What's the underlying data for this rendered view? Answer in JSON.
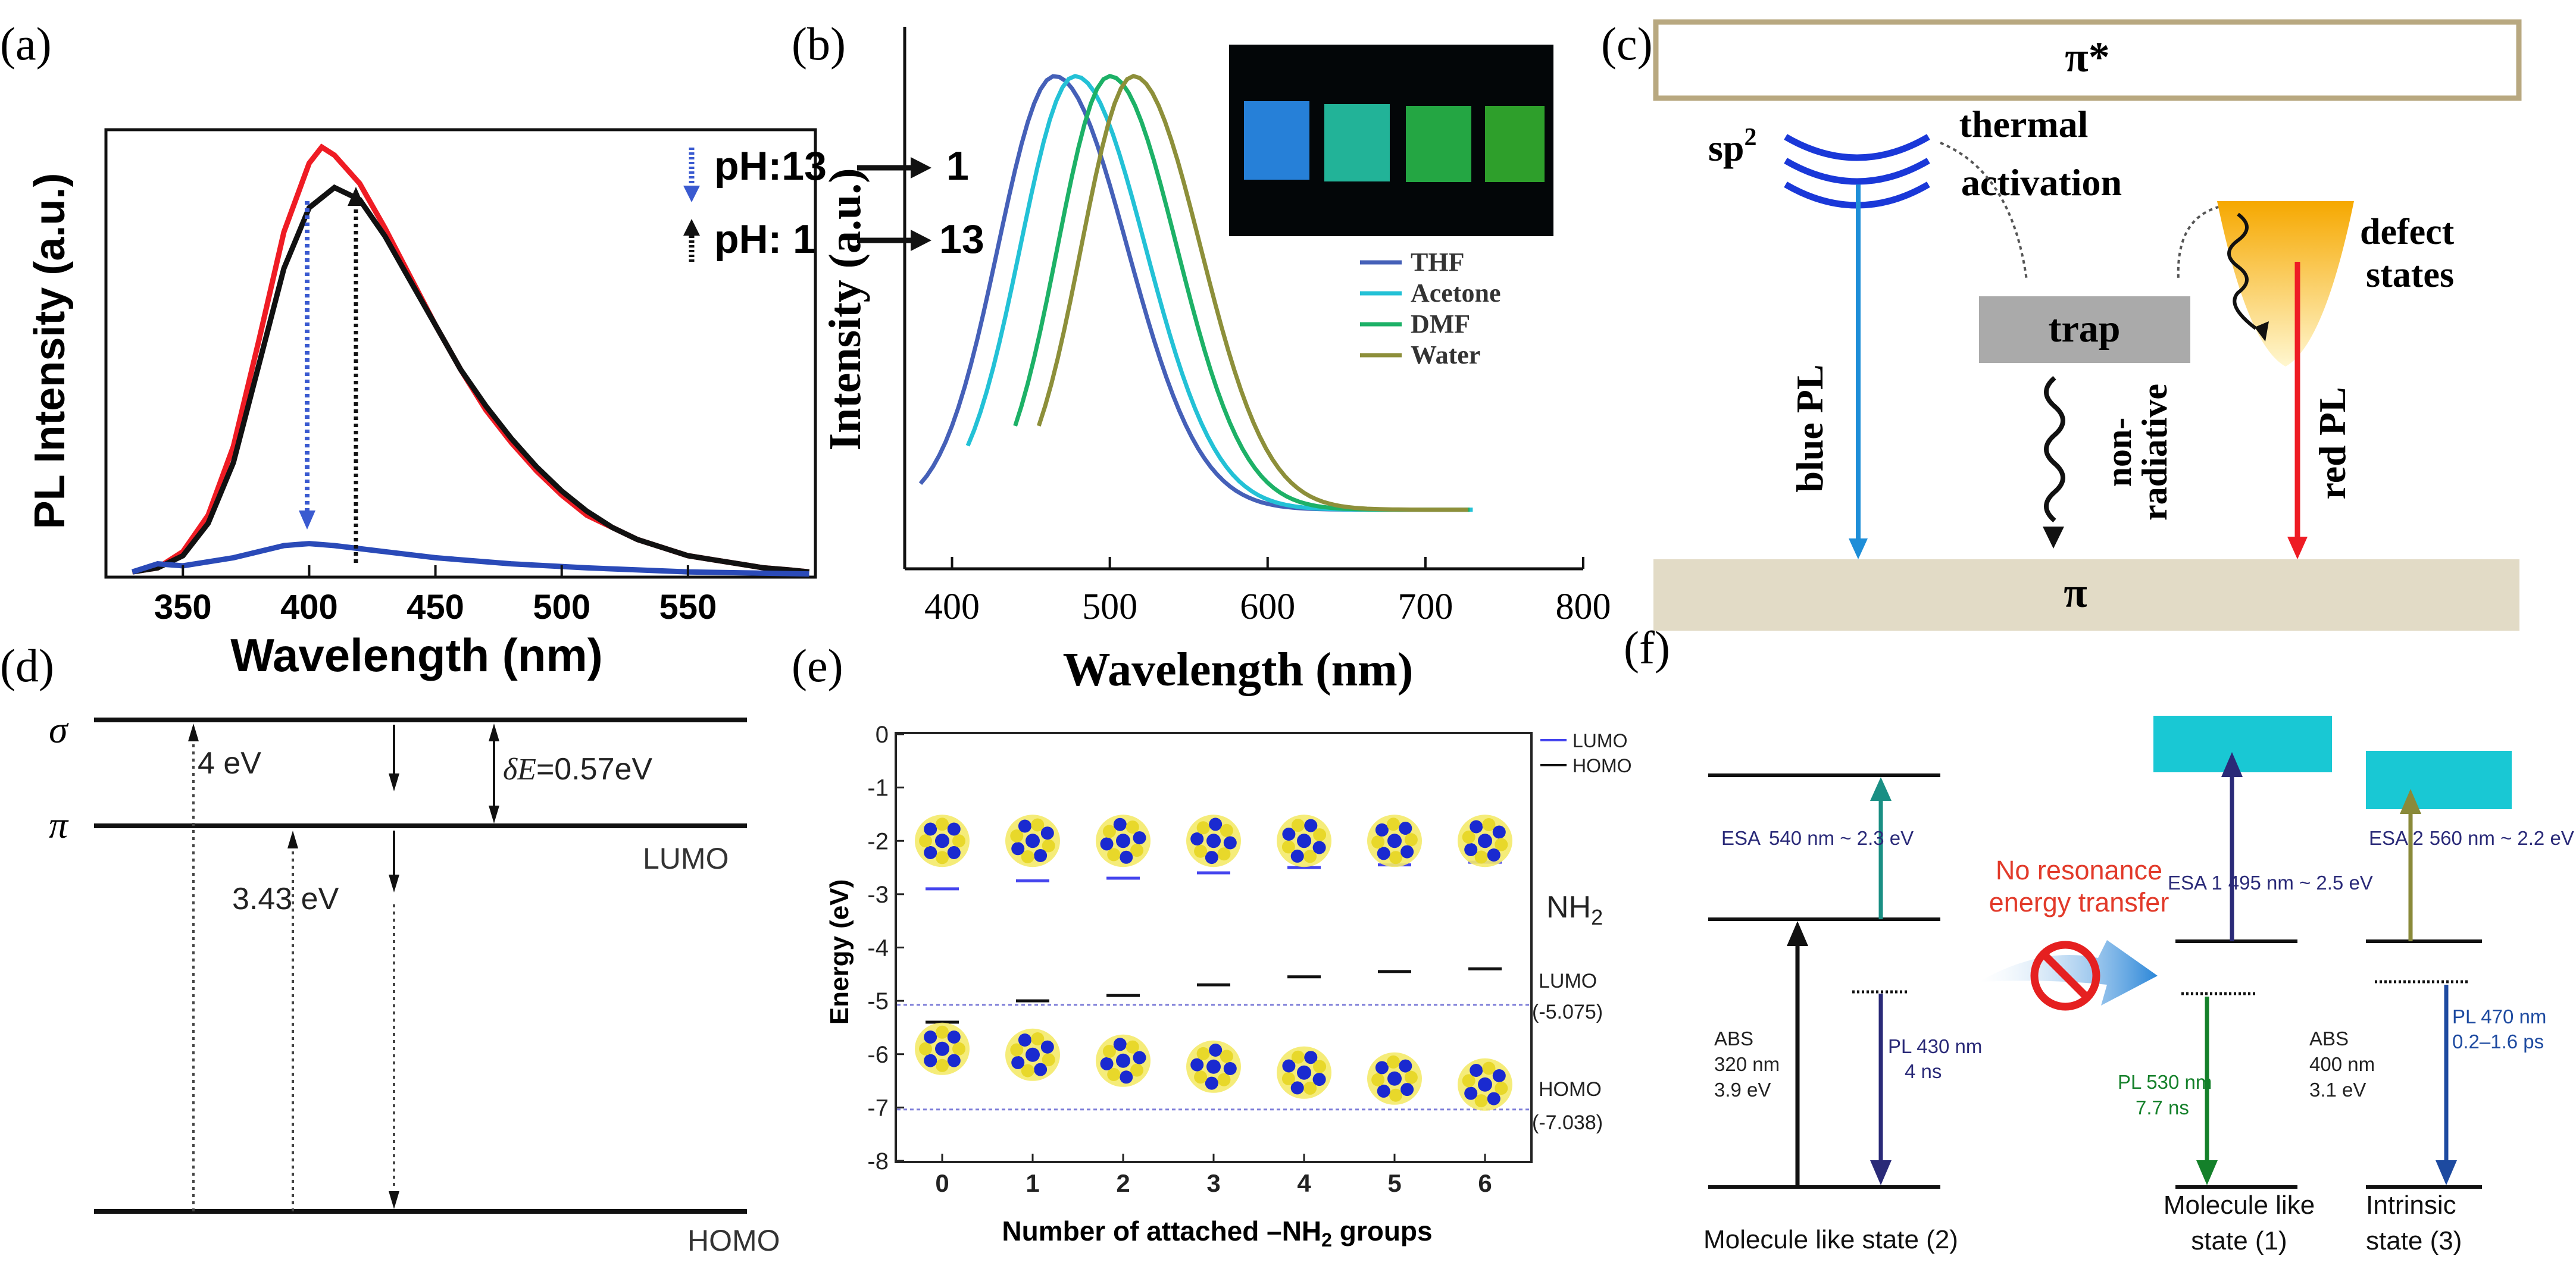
{
  "panel_letters": {
    "a": "(a)",
    "b": "(b)",
    "c": "(c)",
    "d": "(d)",
    "e": "(e)",
    "f": "(f)"
  },
  "colors": {
    "red": "#ef1c24",
    "black": "#111111",
    "blue": "#2a4ab8",
    "thf": "#4560b8",
    "acetone": "#23c1d6",
    "dmf": "#1db167",
    "water": "#8d8f3a",
    "lumo": "#4444ee",
    "beige": "#e2dbc6",
    "cyan": "#19c8d4",
    "dark_blue": "#2a2a78",
    "teal": "#1a8f84",
    "olive": "#8a8a3a",
    "green_pl": "#14802a",
    "navy": "#1d4aa0",
    "ochre": "#a8a46a"
  },
  "chart_data": [
    {
      "id": "a",
      "type": "line",
      "xlabel": "Wavelength (nm)",
      "ylabel": "PL Intensity (a.u.)",
      "xlim": [
        320,
        600
      ],
      "ylim": [
        0,
        1.1
      ],
      "xticks": [
        350,
        400,
        450,
        500,
        550
      ],
      "annotations": [
        "pH:13",
        "1",
        "pH: 1",
        "13"
      ],
      "series": [
        {
          "name": "pH 13 (red)",
          "color": "#ef1c24",
          "x": [
            330,
            340,
            350,
            360,
            370,
            380,
            390,
            400,
            405,
            410,
            420,
            430,
            440,
            450,
            460,
            470,
            480,
            490,
            500,
            510,
            520,
            530,
            540,
            550,
            560,
            570,
            580,
            590,
            598
          ],
          "y": [
            0.01,
            0.02,
            0.06,
            0.15,
            0.32,
            0.58,
            0.85,
            1.02,
            1.06,
            1.04,
            0.97,
            0.86,
            0.74,
            0.62,
            0.51,
            0.41,
            0.33,
            0.26,
            0.2,
            0.15,
            0.12,
            0.09,
            0.07,
            0.05,
            0.04,
            0.03,
            0.02,
            0.015,
            0.01
          ]
        },
        {
          "name": "pH 1 to 13 (black)",
          "color": "#111111",
          "x": [
            330,
            340,
            350,
            360,
            370,
            380,
            390,
            400,
            410,
            420,
            430,
            440,
            450,
            460,
            470,
            480,
            490,
            500,
            510,
            520,
            530,
            540,
            550,
            560,
            570,
            580,
            590,
            598
          ],
          "y": [
            0.01,
            0.02,
            0.05,
            0.13,
            0.28,
            0.52,
            0.76,
            0.91,
            0.96,
            0.93,
            0.84,
            0.73,
            0.62,
            0.51,
            0.42,
            0.34,
            0.27,
            0.21,
            0.16,
            0.12,
            0.09,
            0.07,
            0.05,
            0.04,
            0.03,
            0.02,
            0.015,
            0.01
          ]
        },
        {
          "name": "pH 1 (blue)",
          "color": "#2a4ab8",
          "x": [
            330,
            340,
            350,
            370,
            390,
            400,
            410,
            430,
            450,
            480,
            510,
            550,
            598
          ],
          "y": [
            0.01,
            0.03,
            0.025,
            0.045,
            0.075,
            0.08,
            0.075,
            0.06,
            0.045,
            0.03,
            0.02,
            0.01,
            0.005
          ]
        }
      ]
    },
    {
      "id": "b",
      "type": "line",
      "xlabel": "Wavelength (nm)",
      "ylabel": "Intensity (a.u.)",
      "xlim": [
        370,
        800
      ],
      "ylim": [
        0,
        1.1
      ],
      "xticks": [
        400,
        500,
        600,
        700,
        800
      ],
      "legend": [
        "THF",
        "Acetone",
        "DMF",
        "Water"
      ],
      "series": [
        {
          "name": "THF",
          "color": "#4560b8",
          "peak": 465,
          "start": 380,
          "w": 65
        },
        {
          "name": "Acetone",
          "color": "#23c1d6",
          "peak": 478,
          "start": 410,
          "w": 63
        },
        {
          "name": "DMF",
          "color": "#1db167",
          "peak": 500,
          "start": 440,
          "w": 60
        },
        {
          "name": "Water",
          "color": "#8d8f3a",
          "peak": 515,
          "start": 455,
          "w": 60
        }
      ]
    },
    {
      "id": "e",
      "type": "scatter",
      "xlabel": "Number of attached –NH2 groups",
      "ylabel": "Energy (eV)",
      "xlim": [
        -0.5,
        6.5
      ],
      "ylim": [
        -8,
        0
      ],
      "xticks": [
        0,
        1,
        2,
        3,
        4,
        5,
        6
      ],
      "yticks": [
        0,
        -1,
        -2,
        -3,
        -4,
        -5,
        -6,
        -7,
        -8
      ],
      "legend": [
        "LUMO",
        "HOMO"
      ],
      "lumo": [
        -2.9,
        -2.75,
        -2.7,
        -2.6,
        -2.5,
        -2.45,
        -2.4
      ],
      "homo": [
        -5.4,
        -5.0,
        -4.9,
        -4.7,
        -4.55,
        -4.45,
        -4.4
      ],
      "lumo_ref": -5.075,
      "homo_ref": -7.038
    }
  ],
  "panel_a": {
    "ann1": "pH:13",
    "ann2": "1",
    "ann3": "pH: 1",
    "ann4": "13"
  },
  "panel_b": {
    "legend_title": "THF"
  },
  "panel_c": {
    "pi_star": "π*",
    "pi": "π",
    "sp2": "sp",
    "sp2_sup": "2",
    "thermal1": "thermal",
    "thermal2": "activation",
    "defect1": "defect",
    "defect2": "states",
    "trap": "trap",
    "blue_pl": "blue PL",
    "non1": "non-",
    "non2": "radiative",
    "red_pl": "red PL"
  },
  "panel_d": {
    "sigma": "σ",
    "pi": "π",
    "e4": "4 eV",
    "delta": "δE",
    "delta_val": "=0.57eV",
    "e343": "3.43 eV",
    "lumo": "LUMO",
    "homo": "HOMO"
  },
  "panel_e": {
    "legend_lumo": "LUMO",
    "legend_homo": "HOMO",
    "nh2": "NH",
    "nh2_sub": "2",
    "lumo_ref_label": "LUMO",
    "lumo_ref_val": "(-5.075)",
    "homo_ref_label": "HOMO",
    "homo_ref_val": "(-7.038)",
    "yticks": [
      "0",
      "-1",
      "-2",
      "-3",
      "-4",
      "-5",
      "-6",
      "-7",
      "-8"
    ],
    "xticks": [
      "0",
      "1",
      "2",
      "3",
      "4",
      "5",
      "6"
    ],
    "ylabel": "Energy (eV)",
    "xlabel": "Number of attached –NH"
  },
  "panel_f": {
    "esa": "ESA",
    "esa_val": "540 nm ~ 2.3 eV",
    "abs1": "ABS",
    "abs1_a": "320 nm",
    "abs1_b": "3.9  eV",
    "pl1": "PL 430 nm",
    "pl1_b": "4 ns",
    "no1": "No resonance",
    "no2": "energy transfer",
    "esa1": "ESA 1",
    "esa1_val": "495 nm ~ 2.5 eV",
    "pl2": "PL 530 nm",
    "pl2_b": "7.7 ns",
    "abs2": "ABS",
    "abs2_a": "400 nm",
    "abs2_b": "3.1 eV",
    "esa2": "ESA 2",
    "esa2_val": "560 nm  ~ 2.2 eV",
    "pl3": "PL 470 nm",
    "pl3_b": "0.2–1.6 ps",
    "state2": "Molecule like state (2)",
    "state1a": "Molecule like",
    "state1b": "state (1)",
    "state3a": "Intrinsic",
    "state3b": "state (3)"
  }
}
